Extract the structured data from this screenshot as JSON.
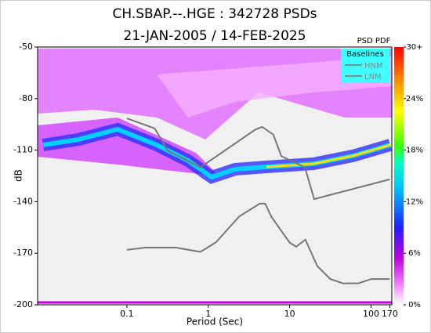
{
  "chart_data": {
    "type": "line",
    "title": "CH.SBAP.--.HGE : 342728 PSDs",
    "subtitle": "21-JAN-2005 / 14-FEB-2025",
    "xlabel": "Period (Sec)",
    "ylabel": "dB",
    "xscale": "log",
    "xlim": [
      0.008,
      180
    ],
    "xticks": [
      0.1,
      1,
      10,
      100,
      170
    ],
    "ylim": [
      -200,
      -50
    ],
    "yticks": [
      -200,
      -170,
      -140,
      -110,
      -80,
      -50
    ],
    "legend_title": "Baselines",
    "series": [
      {
        "name": "HNM",
        "color": "#777777",
        "x": [
          0.1,
          0.22,
          0.32,
          0.8,
          3.8,
          4.6,
          6.3,
          7.9,
          15.4,
          20,
          170
        ],
        "values": [
          -91.5,
          -97.4,
          -110.5,
          -120,
          -98,
          -96.5,
          -101,
          -113.5,
          -120,
          -138.5,
          -127
        ]
      },
      {
        "name": "LNM",
        "color": "#777777",
        "x": [
          0.1,
          0.17,
          0.4,
          0.8,
          1.24,
          2.4,
          4.3,
          5,
          6,
          10,
          12,
          15.6,
          21.9,
          31.6,
          45,
          70,
          101,
          170
        ],
        "values": [
          -168,
          -166.7,
          -166.7,
          -169.2,
          -163.7,
          -148.6,
          -141.1,
          -141.1,
          -149,
          -163.8,
          -166.2,
          -162.1,
          -177.5,
          -185,
          -187.5,
          -187.5,
          -185,
          -185
        ]
      }
    ],
    "colorbar": {
      "title": "PSD PDF",
      "ticks": [
        {
          "value": 0,
          "label": "0%"
        },
        {
          "value": 6,
          "label": "6%"
        },
        {
          "value": 12,
          "label": "12%"
        },
        {
          "value": 18,
          "label": "18%"
        },
        {
          "value": 24,
          "label": "24%"
        },
        {
          "value": 30,
          "label": "30+"
        }
      ],
      "lim": [
        0,
        30
      ]
    }
  }
}
